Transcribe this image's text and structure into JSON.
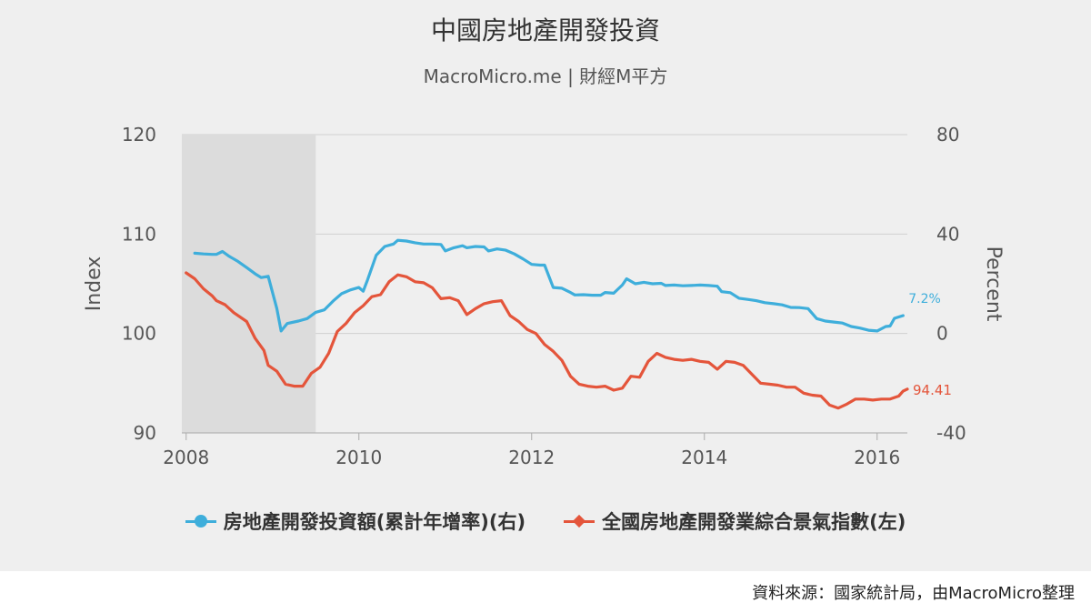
{
  "title": "中國房地產開發投資",
  "subtitle": "MacroMicro.me | 財經M平方",
  "source": "資料來源：國家統計局，由MacroMicro整理",
  "colors": {
    "blue": "#3eaedb",
    "red": "#e4553b",
    "shade": "#dcdcdc",
    "grid": "#d0d0d0",
    "axis_text": "#555555"
  },
  "chart_data": {
    "type": "line",
    "x_ticks": [
      "2008",
      "2010",
      "2012",
      "2014",
      "2016"
    ],
    "x_range": [
      2007.95,
      2016.35
    ],
    "left_axis": {
      "label": "Index",
      "range": [
        90,
        120
      ],
      "ticks": [
        "90",
        "100",
        "110",
        "120"
      ]
    },
    "right_axis": {
      "label": "Percent",
      "range": [
        -40,
        80
      ],
      "ticks": [
        "-40",
        "0",
        "40",
        "80"
      ]
    },
    "recession_shading": [
      2007.95,
      2009.5
    ],
    "series": [
      {
        "name": "房地產開發投資額(累計年增率)(右)",
        "axis": "right",
        "color": "#3eaedb",
        "end_label": "7.2%",
        "points": [
          [
            2008.1,
            32.3
          ],
          [
            2008.2,
            32.0
          ],
          [
            2008.3,
            31.8
          ],
          [
            2008.35,
            31.8
          ],
          [
            2008.42,
            33.0
          ],
          [
            2008.5,
            31.0
          ],
          [
            2008.6,
            29.0
          ],
          [
            2008.7,
            26.5
          ],
          [
            2008.8,
            24.0
          ],
          [
            2008.87,
            22.5
          ],
          [
            2008.95,
            23.0
          ],
          [
            2009.05,
            10.0
          ],
          [
            2009.1,
            1.0
          ],
          [
            2009.17,
            4.0
          ],
          [
            2009.3,
            5.0
          ],
          [
            2009.4,
            6.0
          ],
          [
            2009.5,
            8.5
          ],
          [
            2009.6,
            9.5
          ],
          [
            2009.7,
            13.0
          ],
          [
            2009.8,
            16.0
          ],
          [
            2009.9,
            17.5
          ],
          [
            2010.0,
            18.5
          ],
          [
            2010.05,
            17.0
          ],
          [
            2010.1,
            21.5
          ],
          [
            2010.2,
            31.5
          ],
          [
            2010.3,
            35.0
          ],
          [
            2010.4,
            36.0
          ],
          [
            2010.45,
            37.5
          ],
          [
            2010.55,
            37.2
          ],
          [
            2010.65,
            36.5
          ],
          [
            2010.75,
            36.0
          ],
          [
            2010.85,
            36.0
          ],
          [
            2010.95,
            35.8
          ],
          [
            2011.0,
            33.2
          ],
          [
            2011.1,
            34.5
          ],
          [
            2011.2,
            35.3
          ],
          [
            2011.25,
            34.5
          ],
          [
            2011.35,
            35.0
          ],
          [
            2011.45,
            34.8
          ],
          [
            2011.5,
            33.2
          ],
          [
            2011.6,
            34.0
          ],
          [
            2011.7,
            33.5
          ],
          [
            2011.8,
            32.0
          ],
          [
            2011.9,
            30.0
          ],
          [
            2012.0,
            27.8
          ],
          [
            2012.1,
            27.5
          ],
          [
            2012.15,
            27.5
          ],
          [
            2012.25,
            18.5
          ],
          [
            2012.35,
            18.2
          ],
          [
            2012.45,
            16.5
          ],
          [
            2012.5,
            15.5
          ],
          [
            2012.6,
            15.6
          ],
          [
            2012.7,
            15.4
          ],
          [
            2012.8,
            15.4
          ],
          [
            2012.85,
            16.5
          ],
          [
            2012.95,
            16.2
          ],
          [
            2013.05,
            19.5
          ],
          [
            2013.1,
            22.0
          ],
          [
            2013.2,
            20.0
          ],
          [
            2013.3,
            20.6
          ],
          [
            2013.4,
            20.0
          ],
          [
            2013.5,
            20.2
          ],
          [
            2013.55,
            19.3
          ],
          [
            2013.65,
            19.5
          ],
          [
            2013.75,
            19.2
          ],
          [
            2013.85,
            19.3
          ],
          [
            2013.95,
            19.5
          ],
          [
            2014.05,
            19.3
          ],
          [
            2014.15,
            19.0
          ],
          [
            2014.2,
            16.8
          ],
          [
            2014.3,
            16.4
          ],
          [
            2014.4,
            14.2
          ],
          [
            2014.5,
            13.7
          ],
          [
            2014.6,
            13.2
          ],
          [
            2014.7,
            12.4
          ],
          [
            2014.8,
            12.0
          ],
          [
            2014.9,
            11.5
          ],
          [
            2015.0,
            10.5
          ],
          [
            2015.1,
            10.4
          ],
          [
            2015.2,
            10.0
          ],
          [
            2015.3,
            6.0
          ],
          [
            2015.4,
            5.0
          ],
          [
            2015.5,
            4.6
          ],
          [
            2015.6,
            4.2
          ],
          [
            2015.7,
            2.8
          ],
          [
            2015.8,
            2.2
          ],
          [
            2015.9,
            1.3
          ],
          [
            2016.0,
            1.0
          ],
          [
            2016.1,
            2.8
          ],
          [
            2016.15,
            3.0
          ],
          [
            2016.2,
            6.1
          ],
          [
            2016.3,
            7.2
          ]
        ]
      },
      {
        "name": "全國房地產開發業綜合景氣指數(左)",
        "axis": "left",
        "color": "#e4553b",
        "end_label": "94.41",
        "points": [
          [
            2008.0,
            106.1
          ],
          [
            2008.1,
            105.5
          ],
          [
            2008.2,
            104.5
          ],
          [
            2008.3,
            103.8
          ],
          [
            2008.35,
            103.3
          ],
          [
            2008.45,
            102.9
          ],
          [
            2008.55,
            102.1
          ],
          [
            2008.7,
            101.2
          ],
          [
            2008.8,
            99.5
          ],
          [
            2008.9,
            98.3
          ],
          [
            2008.95,
            96.8
          ],
          [
            2009.05,
            96.2
          ],
          [
            2009.15,
            94.9
          ],
          [
            2009.25,
            94.7
          ],
          [
            2009.35,
            94.7
          ],
          [
            2009.45,
            96.0
          ],
          [
            2009.55,
            96.6
          ],
          [
            2009.65,
            98.0
          ],
          [
            2009.75,
            100.2
          ],
          [
            2009.85,
            101.0
          ],
          [
            2009.95,
            102.1
          ],
          [
            2010.05,
            102.8
          ],
          [
            2010.15,
            103.7
          ],
          [
            2010.25,
            103.9
          ],
          [
            2010.35,
            105.2
          ],
          [
            2010.45,
            105.9
          ],
          [
            2010.55,
            105.7
          ],
          [
            2010.65,
            105.2
          ],
          [
            2010.75,
            105.1
          ],
          [
            2010.85,
            104.6
          ],
          [
            2010.95,
            103.5
          ],
          [
            2011.05,
            103.6
          ],
          [
            2011.15,
            103.3
          ],
          [
            2011.25,
            101.9
          ],
          [
            2011.35,
            102.5
          ],
          [
            2011.45,
            103.0
          ],
          [
            2011.55,
            103.2
          ],
          [
            2011.65,
            103.3
          ],
          [
            2011.75,
            101.8
          ],
          [
            2011.85,
            101.2
          ],
          [
            2011.95,
            100.4
          ],
          [
            2012.05,
            100.0
          ],
          [
            2012.15,
            98.9
          ],
          [
            2012.25,
            98.2
          ],
          [
            2012.35,
            97.3
          ],
          [
            2012.45,
            95.7
          ],
          [
            2012.55,
            94.9
          ],
          [
            2012.65,
            94.7
          ],
          [
            2012.75,
            94.6
          ],
          [
            2012.85,
            94.7
          ],
          [
            2012.95,
            94.3
          ],
          [
            2013.05,
            94.5
          ],
          [
            2013.15,
            95.7
          ],
          [
            2013.25,
            95.6
          ],
          [
            2013.35,
            97.2
          ],
          [
            2013.45,
            98.0
          ],
          [
            2013.55,
            97.6
          ],
          [
            2013.65,
            97.4
          ],
          [
            2013.75,
            97.3
          ],
          [
            2013.85,
            97.4
          ],
          [
            2013.95,
            97.2
          ],
          [
            2014.05,
            97.1
          ],
          [
            2014.15,
            96.4
          ],
          [
            2014.25,
            97.2
          ],
          [
            2014.35,
            97.1
          ],
          [
            2014.45,
            96.8
          ],
          [
            2014.55,
            95.9
          ],
          [
            2014.65,
            95.0
          ],
          [
            2014.75,
            94.9
          ],
          [
            2014.85,
            94.8
          ],
          [
            2014.95,
            94.6
          ],
          [
            2015.05,
            94.6
          ],
          [
            2015.15,
            94.0
          ],
          [
            2015.25,
            93.8
          ],
          [
            2015.35,
            93.7
          ],
          [
            2015.45,
            92.8
          ],
          [
            2015.55,
            92.5
          ],
          [
            2015.65,
            92.9
          ],
          [
            2015.75,
            93.4
          ],
          [
            2015.85,
            93.4
          ],
          [
            2015.95,
            93.3
          ],
          [
            2016.05,
            93.4
          ],
          [
            2016.15,
            93.4
          ],
          [
            2016.25,
            93.7
          ],
          [
            2016.3,
            94.2
          ],
          [
            2016.35,
            94.41
          ]
        ]
      }
    ]
  }
}
